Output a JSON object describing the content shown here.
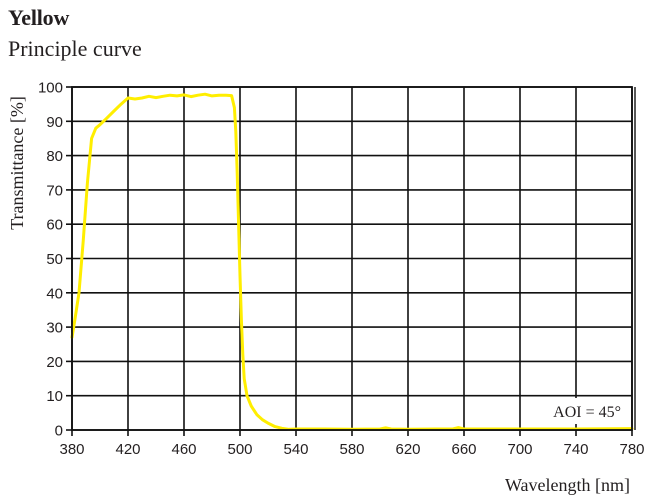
{
  "header": {
    "title": "Yellow",
    "subtitle": "Principle curve"
  },
  "chart_data": {
    "type": "line",
    "title": "Yellow",
    "subtitle": "Principle curve",
    "xlabel": "Wavelength [nm]",
    "ylabel": "Transmittance [%]",
    "xlim": [
      380,
      780
    ],
    "ylim": [
      0,
      100
    ],
    "x_ticks": [
      380,
      420,
      460,
      500,
      540,
      580,
      620,
      660,
      700,
      740,
      780
    ],
    "y_ticks": [
      0,
      10,
      20,
      30,
      40,
      50,
      60,
      70,
      80,
      90,
      100
    ],
    "grid": true,
    "legend": null,
    "annotation": "AOI = 45°",
    "series": [
      {
        "name": "Yellow",
        "color": "#ffee00",
        "x": [
          380,
          382,
          385,
          388,
          391,
          394,
          397,
          400,
          405,
          410,
          415,
          420,
          425,
          430,
          435,
          440,
          445,
          450,
          455,
          460,
          465,
          470,
          475,
          480,
          485,
          490,
          494,
          496,
          497,
          498,
          499,
          500,
          501,
          502,
          503,
          505,
          508,
          512,
          516,
          520,
          525,
          530,
          535,
          540,
          560,
          580,
          600,
          604,
          608,
          620,
          640,
          652,
          656,
          660,
          700,
          740,
          780
        ],
        "y": [
          27,
          32,
          40,
          55,
          72,
          85,
          88,
          89,
          91,
          93,
          95,
          96.8,
          96.5,
          96.8,
          97.3,
          96.9,
          97.3,
          97.6,
          97.4,
          97.7,
          97.2,
          97.6,
          97.9,
          97.4,
          97.6,
          97.6,
          97.5,
          94,
          87,
          75,
          60,
          45,
          32,
          22,
          15,
          10,
          7,
          4.5,
          3,
          2,
          1,
          0.5,
          0.2,
          0.3,
          0.3,
          0.2,
          0.3,
          0.6,
          0.3,
          0.2,
          0.3,
          0.3,
          0.7,
          0.3,
          0.3,
          0.3,
          0.4
        ]
      }
    ]
  }
}
